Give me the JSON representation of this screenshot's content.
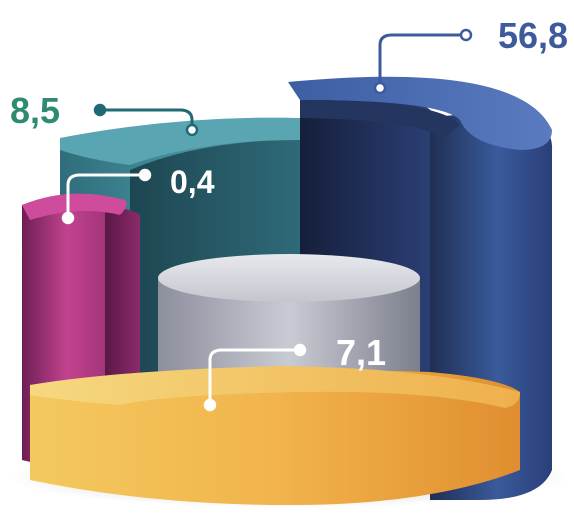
{
  "chart_data": {
    "type": "pie",
    "style": "3d-concentric-rings",
    "title": "",
    "series": [
      {
        "label": "56,8",
        "value": 56.8,
        "color": "#3a5a9c",
        "label_color": "#3d5b9c"
      },
      {
        "label": "8,5",
        "value": 8.5,
        "color": "#3f8a96",
        "label_color": "#2e8b72"
      },
      {
        "label": "0,4",
        "value": 0.4,
        "color": "#b33a86",
        "label_color": "#ffffff"
      },
      {
        "label": "7,1",
        "value": 7.1,
        "color": "#f0b84a",
        "label_color": "#ffffff"
      }
    ],
    "center_cylinder_color": "#b0b3c0",
    "legend": "none",
    "grid": false
  }
}
